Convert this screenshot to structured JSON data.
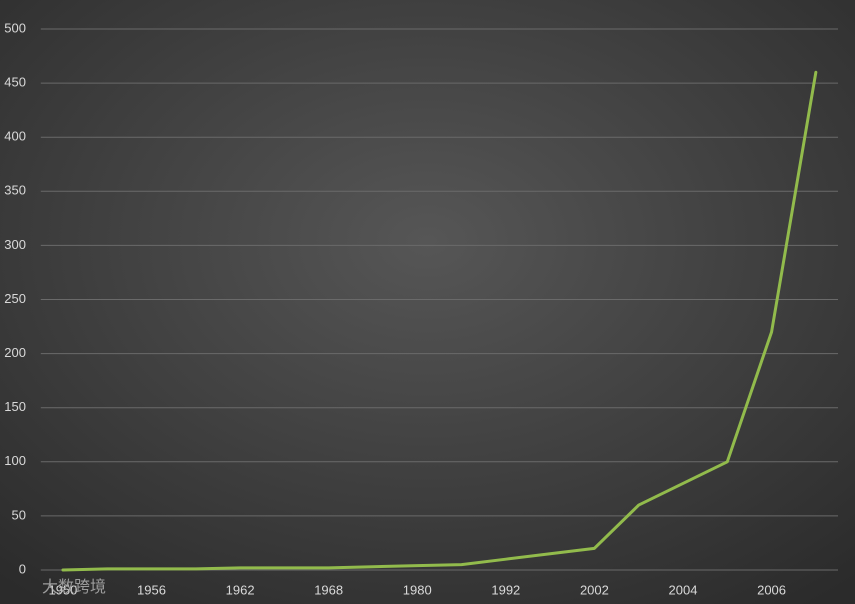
{
  "chart_data": {
    "type": "line",
    "categories": [
      "1950",
      null,
      "1956",
      null,
      "1962",
      null,
      "1968",
      null,
      "1980",
      null,
      "1992",
      null,
      "2002",
      null,
      "2004",
      null,
      "2006",
      null
    ],
    "series": [
      {
        "color": "#92bb4c",
        "values": [
          0,
          1,
          1,
          1,
          2,
          2,
          2,
          3,
          4,
          5,
          10,
          15,
          20,
          60,
          80,
          100,
          220,
          460
        ]
      }
    ],
    "ylim": [
      0,
      500
    ],
    "yticks": [
      0,
      50,
      100,
      150,
      200,
      250,
      300,
      350,
      400,
      450,
      500
    ],
    "grid": true,
    "watermark": "大数跨境"
  }
}
